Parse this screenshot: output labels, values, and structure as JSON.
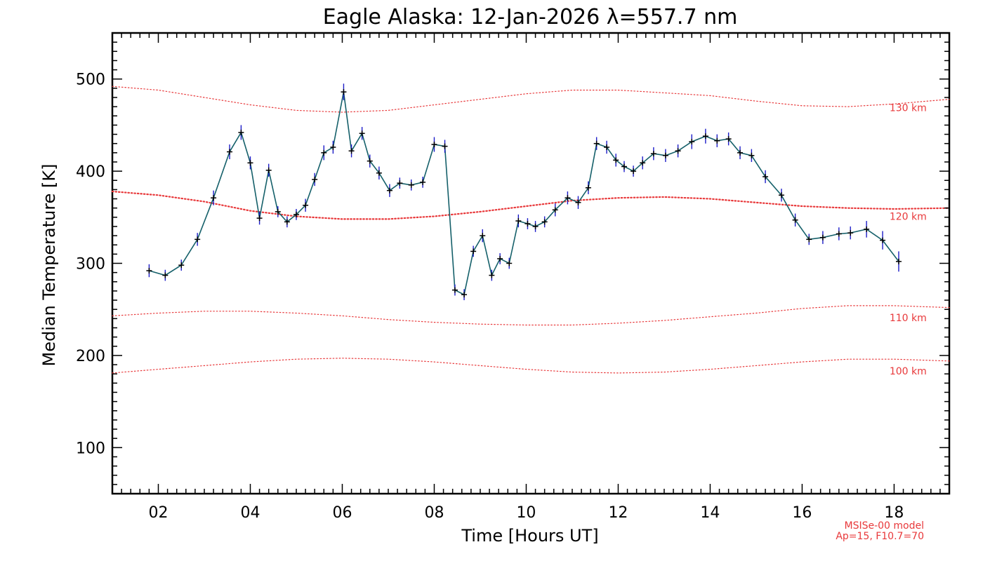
{
  "chart_data": {
    "type": "line",
    "title": "Eagle Alaska: 12-Jan-2026 λ=557.7 nm",
    "xlabel": "Time [Hours UT]",
    "ylabel": "Median Temperature [K]",
    "xlim": [
      1.0,
      19.2
    ],
    "ylim": [
      50,
      550
    ],
    "x_ticks": [
      {
        "value": 2,
        "label": "02"
      },
      {
        "value": 4,
        "label": "04"
      },
      {
        "value": 6,
        "label": "06"
      },
      {
        "value": 8,
        "label": "08"
      },
      {
        "value": 10,
        "label": "10"
      },
      {
        "value": 12,
        "label": "12"
      },
      {
        "value": 14,
        "label": "14"
      },
      {
        "value": 16,
        "label": "16"
      },
      {
        "value": 18,
        "label": "18"
      }
    ],
    "y_ticks": [
      {
        "value": 100,
        "label": "100"
      },
      {
        "value": 200,
        "label": "200"
      },
      {
        "value": 300,
        "label": "300"
      },
      {
        "value": 400,
        "label": "400"
      },
      {
        "value": 500,
        "label": "500"
      }
    ],
    "grid": false,
    "colors": {
      "data_line": "#15606a",
      "error_bar": "#1c1cc8",
      "marker": "#000000",
      "model": "#e8383a"
    },
    "series": [
      {
        "x": [
          1.8,
          2.15,
          2.5,
          2.85,
          3.2,
          3.55,
          3.8,
          4.0,
          4.2,
          4.4,
          4.6,
          4.8,
          5.0,
          5.2,
          5.4,
          5.6,
          5.8,
          6.03,
          6.2,
          6.43,
          6.6,
          6.8,
          7.03,
          7.25,
          7.5,
          7.75,
          8.0,
          8.23,
          8.45,
          8.65,
          8.85,
          9.05,
          9.25,
          9.43,
          9.63,
          9.83,
          10.03,
          10.2,
          10.4,
          10.63,
          10.9,
          11.13,
          11.35,
          11.53,
          11.75,
          11.95,
          12.13,
          12.33,
          12.53,
          12.77,
          13.03,
          13.3,
          13.6,
          13.9,
          14.15,
          14.4,
          14.65,
          14.9,
          15.2,
          15.55,
          15.85,
          16.15,
          16.45,
          16.8,
          17.05,
          17.4,
          17.75,
          18.1
        ],
        "y": [
          292,
          287,
          298,
          326,
          371,
          421,
          442,
          409,
          349,
          401,
          356,
          345,
          353,
          363,
          391,
          420,
          426,
          486,
          422,
          441,
          411,
          398,
          379,
          387,
          385,
          388,
          429,
          427,
          271,
          266,
          313,
          330,
          287,
          305,
          300,
          346,
          343,
          340,
          345,
          358,
          371,
          366,
          382,
          430,
          426,
          412,
          405,
          400,
          409,
          419,
          417,
          422,
          432,
          438,
          433,
          435,
          420,
          417,
          394,
          374,
          347,
          326,
          328,
          332,
          333,
          337,
          325,
          302
        ],
        "err": [
          7,
          6,
          6,
          7,
          8,
          8,
          8,
          7,
          7,
          7,
          6,
          6,
          6,
          7,
          7,
          8,
          7,
          9,
          7,
          7,
          7,
          7,
          7,
          6,
          6,
          6,
          8,
          7,
          6,
          6,
          6,
          7,
          6,
          6,
          6,
          7,
          6,
          6,
          6,
          7,
          7,
          7,
          7,
          7,
          7,
          7,
          6,
          6,
          7,
          7,
          7,
          7,
          8,
          8,
          7,
          7,
          7,
          7,
          7,
          7,
          7,
          6,
          7,
          7,
          7,
          9,
          10,
          11
        ]
      }
    ],
    "model_curves": [
      {
        "label": "130 km",
        "x": [
          1.0,
          2.0,
          3.0,
          4.0,
          5.0,
          6.0,
          7.0,
          8.0,
          9.0,
          10.0,
          11.0,
          12.0,
          13.0,
          14.0,
          15.0,
          16.0,
          17.0,
          18.0,
          19.2
        ],
        "y": [
          492,
          488,
          480,
          472,
          466,
          464,
          466,
          472,
          478,
          484,
          488,
          488,
          485,
          482,
          476,
          471,
          470,
          473,
          478
        ]
      },
      {
        "label": "120 km",
        "x": [
          1.0,
          2.0,
          3.0,
          4.0,
          5.0,
          6.0,
          7.0,
          8.0,
          9.0,
          10.0,
          11.0,
          12.0,
          13.0,
          14.0,
          15.0,
          16.0,
          17.0,
          18.0,
          19.2
        ],
        "y": [
          378,
          374,
          367,
          357,
          351,
          348,
          348,
          351,
          356,
          362,
          368,
          371,
          372,
          370,
          366,
          362,
          360,
          359,
          360
        ]
      },
      {
        "label": "110 km",
        "x": [
          1.0,
          2.0,
          3.0,
          4.0,
          5.0,
          6.0,
          7.0,
          8.0,
          9.0,
          10.0,
          11.0,
          12.0,
          13.0,
          14.0,
          15.0,
          16.0,
          17.0,
          18.0,
          19.2
        ],
        "y": [
          243,
          246,
          248,
          248,
          246,
          243,
          239,
          236,
          234,
          233,
          233,
          235,
          238,
          242,
          246,
          251,
          254,
          254,
          252
        ]
      },
      {
        "label": "100 km",
        "x": [
          1.0,
          2.0,
          3.0,
          4.0,
          5.0,
          6.0,
          7.0,
          8.0,
          9.0,
          10.0,
          11.0,
          12.0,
          13.0,
          14.0,
          15.0,
          16.0,
          17.0,
          18.0,
          19.2
        ],
        "y": [
          181,
          185,
          189,
          193,
          196,
          197,
          196,
          193,
          189,
          185,
          182,
          181,
          182,
          185,
          189,
          193,
          196,
          196,
          194
        ]
      }
    ],
    "model_label_x": 17.9,
    "model_label_y": [
      469,
      351,
      241,
      183
    ],
    "footnote": [
      "MSISe-00 model",
      "Ap=15, F10.7=70"
    ]
  }
}
